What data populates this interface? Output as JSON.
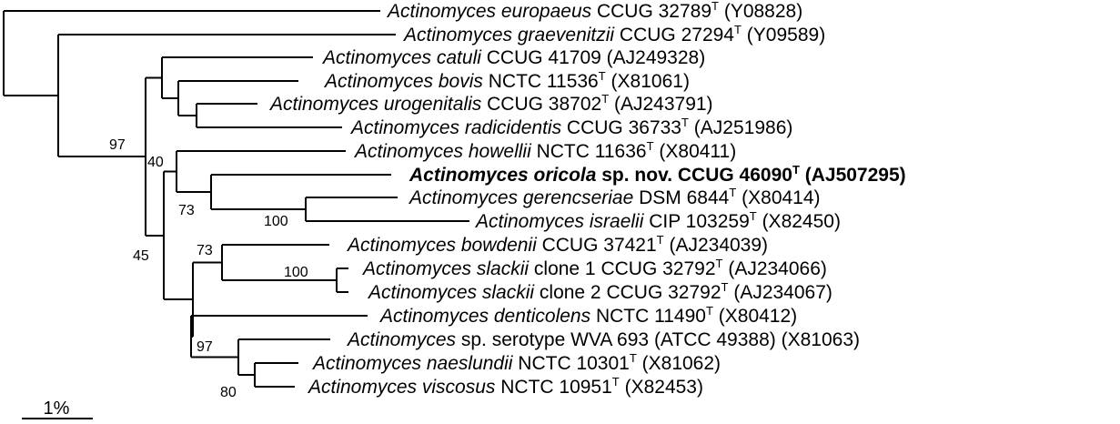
{
  "taxa": [
    {
      "id": "europaeus",
      "genus": "Actinomyces",
      "epithet": "europaeus",
      "suffix": "",
      "strain": "CCUG 32789",
      "type_strain": true,
      "accession": "(Y08828)",
      "bold": false
    },
    {
      "id": "graevenitzii",
      "genus": "Actinomyces",
      "epithet": "graevenitzii",
      "suffix": "",
      "strain": "CCUG 27294",
      "type_strain": true,
      "accession": "(Y09589)",
      "bold": false
    },
    {
      "id": "catuli",
      "genus": "Actinomyces",
      "epithet": "catuli",
      "suffix": "",
      "strain": "CCUG 41709",
      "type_strain": false,
      "accession": "(AJ249328)",
      "bold": false
    },
    {
      "id": "bovis",
      "genus": "Actinomyces",
      "epithet": "bovis",
      "suffix": "",
      "strain": "NCTC 11536",
      "type_strain": true,
      "accession": "(X81061)",
      "bold": false
    },
    {
      "id": "urogenitalis",
      "genus": "Actinomyces",
      "epithet": "urogenitalis",
      "suffix": "",
      "strain": "CCUG 38702",
      "type_strain": true,
      "accession": "(AJ243791)",
      "bold": false
    },
    {
      "id": "radicidentis",
      "genus": "Actinomyces",
      "epithet": "radicidentis",
      "suffix": "",
      "strain": "CCUG 36733",
      "type_strain": true,
      "accession": "(AJ251986)",
      "bold": false
    },
    {
      "id": "howellii",
      "genus": "Actinomyces",
      "epithet": "howellii",
      "suffix": "",
      "strain": "NCTC 11636",
      "type_strain": true,
      "accession": "(X80411)",
      "bold": false
    },
    {
      "id": "oricola",
      "genus": "Actinomyces",
      "epithet": "oricola",
      "suffix": "sp. nov.",
      "strain": "CCUG 46090",
      "type_strain": true,
      "accession": "(AJ507295)",
      "bold": true
    },
    {
      "id": "gerencseriae",
      "genus": "Actinomyces",
      "epithet": "gerencseriae",
      "suffix": "",
      "strain": "DSM 6844",
      "type_strain": true,
      "accession": "(X80414)",
      "bold": false
    },
    {
      "id": "israelii",
      "genus": "Actinomyces",
      "epithet": "israelii",
      "suffix": "",
      "strain": "CIP 103259",
      "type_strain": true,
      "accession": "(X82450)",
      "bold": false
    },
    {
      "id": "bowdenii",
      "genus": "Actinomyces",
      "epithet": "bowdenii",
      "suffix": "",
      "strain": "CCUG 37421",
      "type_strain": true,
      "accession": "(AJ234039)",
      "bold": false
    },
    {
      "id": "slackii1",
      "genus": "Actinomyces",
      "epithet": "slackii",
      "suffix": "clone 1",
      "strain": "CCUG 32792",
      "type_strain": true,
      "accession": "(AJ234066)",
      "bold": false
    },
    {
      "id": "slackii2",
      "genus": "Actinomyces",
      "epithet": "slackii",
      "suffix": "clone 2",
      "strain": "CCUG 32792",
      "type_strain": true,
      "accession": "(AJ234067)",
      "bold": false
    },
    {
      "id": "denticolens",
      "genus": "Actinomyces",
      "epithet": "denticolens",
      "suffix": "",
      "strain": "NCTC 11490",
      "type_strain": true,
      "accession": "(X80412)",
      "bold": false
    },
    {
      "id": "wva693",
      "genus": "Actinomyces",
      "epithet": "",
      "suffix": "sp. serotype WVA 693",
      "strain": "(ATCC 49388)",
      "type_strain": false,
      "accession": "(X81063)",
      "bold": false
    },
    {
      "id": "naeslundii",
      "genus": "Actinomyces",
      "epithet": "naeslundii",
      "suffix": "",
      "strain": "NCTC 10301",
      "type_strain": true,
      "accession": "(X81062)",
      "bold": false
    },
    {
      "id": "viscosus",
      "genus": "Actinomyces",
      "epithet": "viscosus",
      "suffix": "",
      "strain": "NCTC 10951",
      "type_strain": true,
      "accession": "(X82453)",
      "bold": false
    }
  ],
  "type_strain_mark": "T",
  "support_values": [
    {
      "node": "n97",
      "value": "97"
    },
    {
      "node": "n40",
      "value": "40"
    },
    {
      "node": "n73a",
      "value": "73"
    },
    {
      "node": "n100a",
      "value": "100"
    },
    {
      "node": "n45",
      "value": "45"
    },
    {
      "node": "n73b",
      "value": "73"
    },
    {
      "node": "n100b",
      "value": "100"
    },
    {
      "node": "n97b",
      "value": "97"
    },
    {
      "node": "n80",
      "value": "80"
    }
  ],
  "scale_bar": {
    "label": "1%"
  }
}
